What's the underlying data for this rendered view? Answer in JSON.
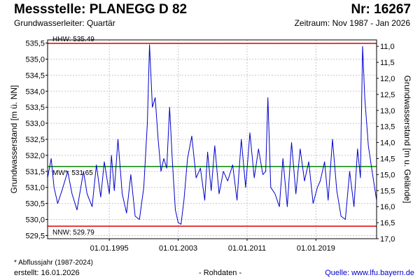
{
  "header": {
    "title": "Messstelle: PLANEGG D 82",
    "station_number": "Nr: 16267",
    "aquifer": "Grundwasserleiter: Quartär",
    "period": "Zeitraum: Nov 1987 - Jan 2026"
  },
  "footer": {
    "footnote": "* Abflussjahr (1987-2024)",
    "created": "erstellt:  16.01.2026",
    "raw_data": "- Rohdaten -",
    "source": "Quelle: www.lfu.bayern.de"
  },
  "colors": {
    "series": "#0000cc",
    "hhw_line": "#dd0000",
    "nnw_line": "#dd0000",
    "mw_line": "#008800",
    "grid": "#c8c8c8"
  },
  "chart_data": {
    "type": "line",
    "ylabel": "Grundwasserstand [m ü. NN]",
    "y2label": "Grundwasserstand [m u. Gelände]",
    "ylim": [
      529.4,
      535.6
    ],
    "y_ticks": [
      "529,5",
      "530,0",
      "530,5",
      "531,0",
      "531,5",
      "532,0",
      "532,5",
      "533,0",
      "533,5",
      "534,0",
      "534,5",
      "535,0",
      "535,5"
    ],
    "y_tick_values": [
      529.5,
      530.0,
      530.5,
      531.0,
      531.5,
      532.0,
      532.5,
      533.0,
      533.5,
      534.0,
      534.5,
      535.0,
      535.5
    ],
    "y2_ticks": [
      "11,0",
      "11,5",
      "12,0",
      "12,5",
      "13,0",
      "13,5",
      "14,0",
      "14,5",
      "15,0",
      "15,5",
      "16,0",
      "16,5",
      "17,0"
    ],
    "y2_tick_values": [
      535.4,
      534.9,
      534.4,
      533.9,
      533.4,
      532.9,
      532.4,
      531.9,
      531.4,
      530.9,
      530.4,
      529.9,
      529.4
    ],
    "xlim": [
      "1987-11-01",
      "2026-01-16"
    ],
    "x_ticks": [
      "01.01.1995",
      "01.01.2003",
      "01.01.2011",
      "01.01.2019"
    ],
    "x_tick_values": [
      "1995-01-01",
      "2003-01-01",
      "2011-01-01",
      "2019-01-01"
    ],
    "grid": true,
    "reference_lines": [
      {
        "label": "HHW: 535.49",
        "value": 535.49,
        "color_key": "hhw_line"
      },
      {
        "label": "MW*: 531.65",
        "value": 531.65,
        "color_key": "mw_line"
      },
      {
        "label": "NNW: 529.79",
        "value": 529.79,
        "color_key": "nnw_line"
      }
    ],
    "series": [
      {
        "x": [
          "1987-11-01",
          "1988-04-01",
          "1988-08-01",
          "1989-01-01",
          "1989-07-01",
          "1990-03-01",
          "1990-09-01",
          "1991-04-01",
          "1992-01-01",
          "1992-06-01",
          "1993-01-01",
          "1993-07-01",
          "1994-01-01",
          "1994-06-01",
          "1995-01-01",
          "1995-04-01",
          "1995-08-01",
          "1996-01-01",
          "1996-07-01",
          "1997-01-01",
          "1997-07-01",
          "1998-01-01",
          "1998-07-01",
          "1999-01-01",
          "1999-06-01",
          "1999-09-01",
          "2000-01-01",
          "2000-05-01",
          "2000-09-01",
          "2001-01-01",
          "2001-05-01",
          "2001-09-01",
          "2002-01-01",
          "2002-05-01",
          "2002-09-01",
          "2003-01-01",
          "2003-05-01",
          "2003-09-01",
          "2004-02-01",
          "2004-08-01",
          "2005-02-01",
          "2005-08-01",
          "2006-02-01",
          "2006-06-01",
          "2006-11-01",
          "2007-04-01",
          "2007-10-01",
          "2008-04-01",
          "2008-10-01",
          "2009-05-01",
          "2009-11-01",
          "2010-05-01",
          "2010-11-01",
          "2011-05-01",
          "2011-11-01",
          "2012-05-01",
          "2012-11-01",
          "2013-03-01",
          "2013-06-01",
          "2013-10-01",
          "2014-04-01",
          "2014-10-01",
          "2015-03-01",
          "2015-09-01",
          "2016-03-01",
          "2016-09-01",
          "2017-03-01",
          "2017-09-01",
          "2018-03-01",
          "2018-09-01",
          "2019-03-01",
          "2019-07-01",
          "2020-01-01",
          "2020-06-01",
          "2020-12-01",
          "2021-06-01",
          "2021-12-01",
          "2022-06-01",
          "2022-12-01",
          "2023-06-01",
          "2023-11-01",
          "2024-03-01",
          "2024-06-01",
          "2024-09-01",
          "2025-02-01",
          "2025-08-01",
          "2026-01-16"
        ],
        "y": [
          531.3,
          531.9,
          531.0,
          530.5,
          530.9,
          531.5,
          530.8,
          530.3,
          531.5,
          530.8,
          530.4,
          531.7,
          530.7,
          531.8,
          530.8,
          532.0,
          530.9,
          532.5,
          530.8,
          530.2,
          531.4,
          530.1,
          530.0,
          531.0,
          533.0,
          535.45,
          533.5,
          533.8,
          532.5,
          531.5,
          531.9,
          531.6,
          533.5,
          531.8,
          530.3,
          529.9,
          529.85,
          530.6,
          531.9,
          532.6,
          531.3,
          531.6,
          530.6,
          532.1,
          530.9,
          532.3,
          530.8,
          531.5,
          531.2,
          531.7,
          530.6,
          532.5,
          531.0,
          532.7,
          531.3,
          532.2,
          531.4,
          531.5,
          533.8,
          531.0,
          530.8,
          530.4,
          531.9,
          530.4,
          532.4,
          530.8,
          532.2,
          531.2,
          531.8,
          530.5,
          531.0,
          531.2,
          531.8,
          530.6,
          532.5,
          530.9,
          530.1,
          530.0,
          531.5,
          530.4,
          532.2,
          531.3,
          535.4,
          533.8,
          532.3,
          531.4,
          530.6
        ]
      }
    ]
  }
}
